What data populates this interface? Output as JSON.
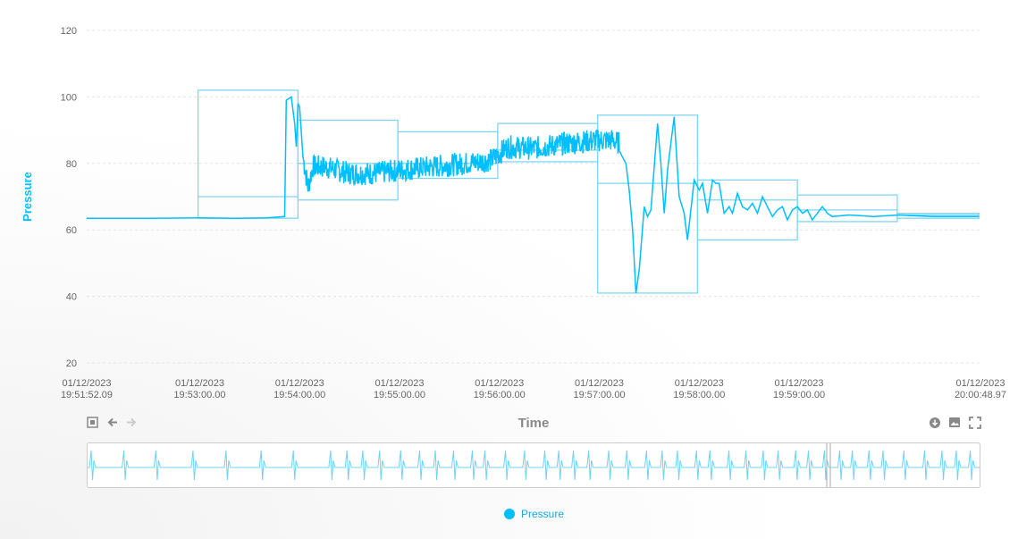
{
  "chart_data": {
    "type": "line",
    "ylabel": "Pressure",
    "xlabel": "Time",
    "ylim": [
      20,
      120
    ],
    "y_ticks": [
      20,
      40,
      60,
      80,
      100,
      120
    ],
    "x_ticks": [
      {
        "date": "01/12/2023",
        "time": "19:51:52.09"
      },
      {
        "date": "01/12/2023",
        "time": "19:53:00.00"
      },
      {
        "date": "01/12/2023",
        "time": "19:54:00.00"
      },
      {
        "date": "01/12/2023",
        "time": "19:55:00.00"
      },
      {
        "date": "01/12/2023",
        "time": "19:56:00.00"
      },
      {
        "date": "01/12/2023",
        "time": "19:57:00.00"
      },
      {
        "date": "01/12/2023",
        "time": "19:58:00.00"
      },
      {
        "date": "01/12/2023",
        "time": "19:59:00.00"
      },
      {
        "date": "01/12/2023",
        "time": "20:00:48.97"
      }
    ],
    "x_range": [
      "19:51:52.09",
      "20:00:48.97"
    ],
    "grid": true,
    "legend_position": "bottom",
    "series": [
      {
        "name": "Pressure",
        "color": "#00bfff",
        "points": [
          [
            "19:51:52",
            63.5
          ],
          [
            "19:52:30",
            63.5
          ],
          [
            "19:53:00",
            63.6
          ],
          [
            "19:53:20",
            63.5
          ],
          [
            "19:53:40",
            63.6
          ],
          [
            "19:53:51",
            64
          ],
          [
            "19:53:52",
            99
          ],
          [
            "19:53:55",
            100
          ],
          [
            "19:53:57",
            92
          ],
          [
            "19:53:58",
            85
          ],
          [
            "19:53:59",
            98
          ],
          [
            "19:54:00",
            97
          ],
          [
            "19:54:02",
            82
          ],
          [
            "19:54:05",
            73
          ],
          [
            "19:54:08",
            79
          ],
          [
            "19:54:15",
            79
          ],
          [
            "19:54:30",
            77
          ],
          [
            "19:54:45",
            77
          ],
          [
            "19:55:00",
            78
          ],
          [
            "19:55:20",
            79
          ],
          [
            "19:55:40",
            80
          ],
          [
            "19:55:55",
            81
          ],
          [
            "19:56:05",
            85
          ],
          [
            "19:56:20",
            84.5
          ],
          [
            "19:56:40",
            86
          ],
          [
            "19:57:00",
            87
          ],
          [
            "19:57:08",
            87
          ],
          [
            "19:57:12",
            86
          ],
          [
            "19:57:16",
            80
          ],
          [
            "19:57:18",
            72
          ],
          [
            "19:57:20",
            60
          ],
          [
            "19:57:22",
            41
          ],
          [
            "19:57:24",
            48
          ],
          [
            "19:57:27",
            67
          ],
          [
            "19:57:29",
            64
          ],
          [
            "19:57:31",
            66
          ],
          [
            "19:57:35",
            92
          ],
          [
            "19:57:37",
            80
          ],
          [
            "19:57:39",
            65
          ],
          [
            "19:57:41",
            78
          ],
          [
            "19:57:45",
            94
          ],
          [
            "19:57:48",
            70
          ],
          [
            "19:57:51",
            65
          ],
          [
            "19:57:53",
            57
          ],
          [
            "19:57:57",
            75
          ],
          [
            "19:58:00",
            72
          ],
          [
            "19:58:02",
            74
          ],
          [
            "19:58:05",
            65
          ],
          [
            "19:58:08",
            75
          ],
          [
            "19:58:10",
            74
          ],
          [
            "19:58:12",
            74
          ],
          [
            "19:58:15",
            65
          ],
          [
            "19:58:18",
            67
          ],
          [
            "19:58:20",
            65
          ],
          [
            "19:58:23",
            71
          ],
          [
            "19:58:26",
            67
          ],
          [
            "19:58:29",
            66
          ],
          [
            "19:58:32",
            68
          ],
          [
            "19:58:35",
            65
          ],
          [
            "19:58:38",
            70
          ],
          [
            "19:58:41",
            67
          ],
          [
            "19:58:44",
            64
          ],
          [
            "19:58:47",
            66
          ],
          [
            "19:58:50",
            67
          ],
          [
            "19:58:53",
            63
          ],
          [
            "19:58:56",
            66
          ],
          [
            "19:58:59",
            67
          ],
          [
            "19:59:02",
            65
          ],
          [
            "19:59:05",
            66
          ],
          [
            "19:59:08",
            63
          ],
          [
            "19:59:11",
            65
          ],
          [
            "19:59:14",
            67
          ],
          [
            "19:59:17",
            65
          ],
          [
            "19:59:20",
            64
          ],
          [
            "19:59:30",
            64.5
          ],
          [
            "19:59:45",
            64
          ],
          [
            "20:00:00",
            64.5
          ],
          [
            "20:00:20",
            64
          ],
          [
            "20:00:48",
            64
          ]
        ]
      }
    ],
    "envelopes": [
      {
        "start": "19:52:59",
        "end": "19:53:59",
        "min": 63.5,
        "max": 102,
        "mid": 70
      },
      {
        "start": "19:53:59",
        "end": "19:54:59",
        "min": 69,
        "max": 93,
        "mid": 80
      },
      {
        "start": "19:54:59",
        "end": "19:55:59",
        "min": 75.5,
        "max": 89.5,
        "mid": 80
      },
      {
        "start": "19:55:59",
        "end": "19:56:59",
        "min": 80.5,
        "max": 92,
        "mid": 84
      },
      {
        "start": "19:56:59",
        "end": "19:57:59",
        "min": 41,
        "max": 94.5,
        "mid": 74
      },
      {
        "start": "19:57:59",
        "end": "19:58:59",
        "min": 57,
        "max": 75,
        "mid": 69
      },
      {
        "start": "19:58:59",
        "end": "19:59:59",
        "min": 62.5,
        "max": 70.5,
        "mid": 66
      },
      {
        "start": "19:59:59",
        "end": "20:00:48",
        "min": 63.5,
        "max": 65,
        "mid": 64.5
      }
    ]
  },
  "toolbar": {
    "left_icons": [
      "expand-arrows-icon",
      "arrow-left-icon",
      "arrow-right-icon"
    ],
    "right_icons": [
      "download-icon",
      "image-icon",
      "fullscreen-icon"
    ]
  },
  "legend": {
    "label": "Pressure",
    "color": "#00bfff"
  }
}
